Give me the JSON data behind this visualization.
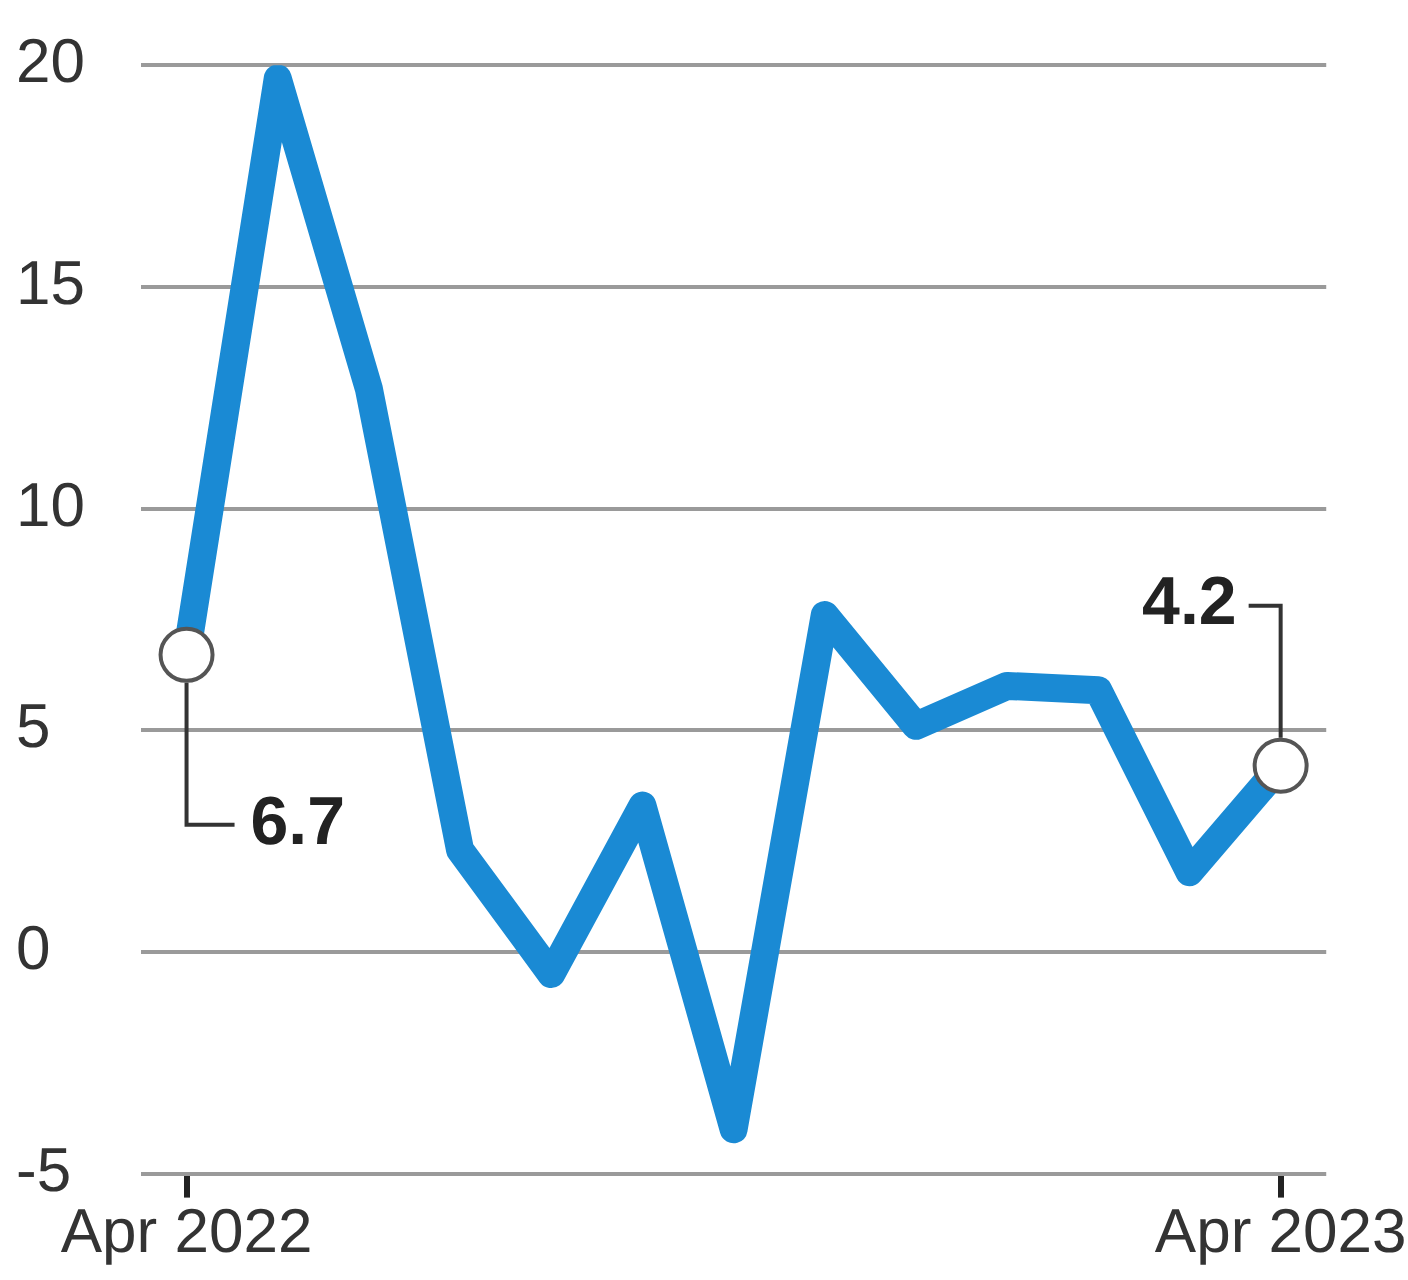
{
  "chart_data": {
    "type": "line",
    "categories": [
      "Apr 2022",
      null,
      null,
      null,
      null,
      null,
      null,
      null,
      null,
      null,
      null,
      null,
      "Apr 2023"
    ],
    "series": [
      {
        "color": "#1a8ad4",
        "values": [
          6.7,
          19.7,
          12.7,
          2.3,
          -0.5,
          3.3,
          -4.0,
          7.6,
          5.1,
          6.0,
          5.9,
          1.8,
          4.2
        ],
        "value_labels": [
          "6.7",
          null,
          null,
          null,
          null,
          null,
          null,
          null,
          null,
          null,
          null,
          null,
          "4.2"
        ]
      }
    ],
    "ylim": [
      -5,
      20
    ],
    "yticks": [
      -5,
      0,
      5,
      10,
      15,
      20
    ],
    "grid": "y",
    "legend": false,
    "marker": "none",
    "line_style": "solid"
  }
}
